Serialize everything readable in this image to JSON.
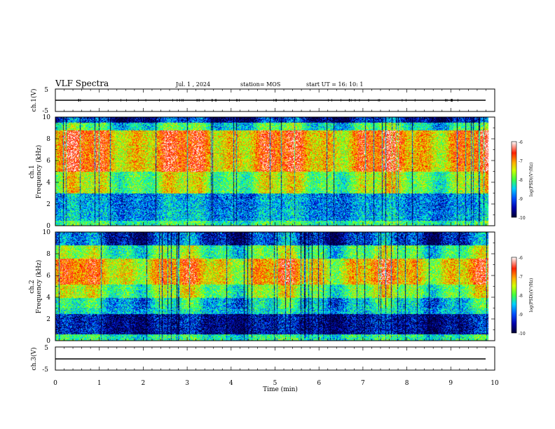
{
  "header": {
    "title": "VLF Spectra",
    "date": "Jul.  1  , 2024",
    "station": "station= MOS",
    "start": "start  UT  =   16: 10: 1"
  },
  "colors": {
    "spectrogram_ramp": [
      "#000033",
      "#000088",
      "#0020ff",
      "#00b0ff",
      "#00ffd0",
      "#40ff40",
      "#c8ff00",
      "#ffd000",
      "#ff5000",
      "#ff0000",
      "#ffffff"
    ]
  },
  "chart_data": [
    {
      "id": "ch1-waveform",
      "type": "line",
      "ylabel": "ch.1(V)",
      "ylim": [
        -5,
        5
      ],
      "yticks": [
        "5",
        "-5"
      ],
      "xlim": [
        0,
        10
      ],
      "description_level_V": 0
    },
    {
      "id": "ch1-spectrogram",
      "type": "heatmap",
      "ylabel_line1": "ch.1",
      "ylabel_line2": "Frequency  (kHz)",
      "ylim": [
        0,
        10
      ],
      "yticks": [
        "0",
        "2",
        "4",
        "6",
        "8",
        "10"
      ],
      "xlim": [
        0,
        10
      ],
      "data_end_min": 9.85,
      "colorbar": {
        "label": "log(PSD)(V²/Hz)",
        "range": [
          -10,
          -6
        ],
        "ticks": [
          "-6",
          "-7",
          "-8",
          "-9",
          "-10"
        ]
      },
      "bands": [
        {
          "from_khz": 0,
          "to_khz": 0.5,
          "log_psd": -8.2
        },
        {
          "from_khz": 0.5,
          "to_khz": 1.5,
          "log_psd": -8.8
        },
        {
          "from_khz": 1.5,
          "to_khz": 3.0,
          "log_psd": -8.9
        },
        {
          "from_khz": 3.0,
          "to_khz": 5.0,
          "log_psd": -7.8
        },
        {
          "from_khz": 5.0,
          "to_khz": 8.8,
          "log_psd": -7.0
        },
        {
          "from_khz": 8.8,
          "to_khz": 9.5,
          "log_psd": -8.3
        },
        {
          "from_khz": 9.5,
          "to_khz": 10,
          "log_psd": -9.5
        }
      ]
    },
    {
      "id": "ch2-spectrogram",
      "type": "heatmap",
      "ylabel_line1": "ch.2",
      "ylabel_line2": "Frequency  (kHz)",
      "ylim": [
        0,
        10
      ],
      "yticks": [
        "0",
        "2",
        "4",
        "6",
        "8",
        "10"
      ],
      "xlim": [
        0,
        10
      ],
      "data_end_min": 9.85,
      "colorbar": {
        "label": "log(PSD)(V²/Hz)",
        "range": [
          -10,
          -6
        ],
        "ticks": [
          "-6",
          "-7",
          "-8",
          "-9",
          "-10"
        ]
      },
      "bands": [
        {
          "from_khz": 0,
          "to_khz": 0.6,
          "log_psd": -8.3
        },
        {
          "from_khz": 0.6,
          "to_khz": 2.5,
          "log_psd": -9.6
        },
        {
          "from_khz": 2.5,
          "to_khz": 4.0,
          "log_psd": -8.6
        },
        {
          "from_khz": 4.0,
          "to_khz": 5.2,
          "log_psd": -7.9
        },
        {
          "from_khz": 5.2,
          "to_khz": 7.6,
          "log_psd": -7.2
        },
        {
          "from_khz": 7.6,
          "to_khz": 8.8,
          "log_psd": -8.1
        },
        {
          "from_khz": 8.8,
          "to_khz": 10,
          "log_psd": -9.3
        }
      ]
    },
    {
      "id": "ch3-waveform",
      "type": "line",
      "ylabel": "ch.3(V)",
      "ylim": [
        -5,
        5
      ],
      "yticks": [
        "5",
        "-5"
      ],
      "xlim": [
        0,
        10
      ],
      "description_level_V": 0,
      "xlabel": "Time  (min)",
      "xticks": [
        "0",
        "1",
        "2",
        "3",
        "4",
        "5",
        "6",
        "7",
        "8",
        "9",
        "10"
      ]
    }
  ]
}
